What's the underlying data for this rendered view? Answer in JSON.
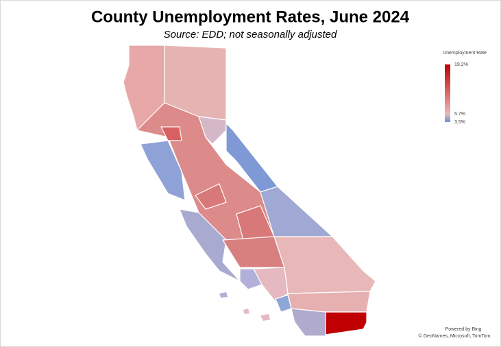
{
  "title": "County Unemployment Rates, June 2024",
  "subtitle": "Source:  EDD; not seasonally adjusted",
  "legend": {
    "title": "Unemployment Rate",
    "stops": [
      {
        "value": 19.2,
        "label": "19.2%",
        "color": "#c00000"
      },
      {
        "value": 5.7,
        "label": "5.7%",
        "color": "#ebb9b9"
      },
      {
        "value": 3.5,
        "label": "3.5%",
        "color": "#6b8fd3"
      }
    ]
  },
  "credits": [
    "Powered by Bing",
    "© GeoNames, Microsoft, TomTom"
  ]
}
